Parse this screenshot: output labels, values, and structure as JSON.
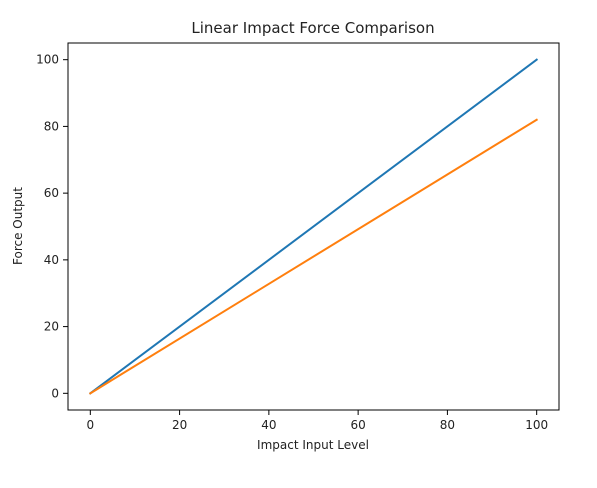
{
  "chart_data": {
    "type": "line",
    "title": "Linear Impact Force Comparison",
    "xlabel": "Impact Input Level",
    "ylabel": "Force Output",
    "xlim": [
      -5,
      105
    ],
    "ylim": [
      -5,
      105
    ],
    "xticks": [
      0,
      20,
      40,
      60,
      80,
      100
    ],
    "yticks": [
      0,
      20,
      40,
      60,
      80,
      100
    ],
    "grid": false,
    "series": [
      {
        "color": "#1f77b4",
        "x": [
          0,
          100
        ],
        "y": [
          0,
          100
        ]
      },
      {
        "color": "#ff7f0e",
        "x": [
          0,
          100
        ],
        "y": [
          0,
          82
        ]
      }
    ]
  }
}
